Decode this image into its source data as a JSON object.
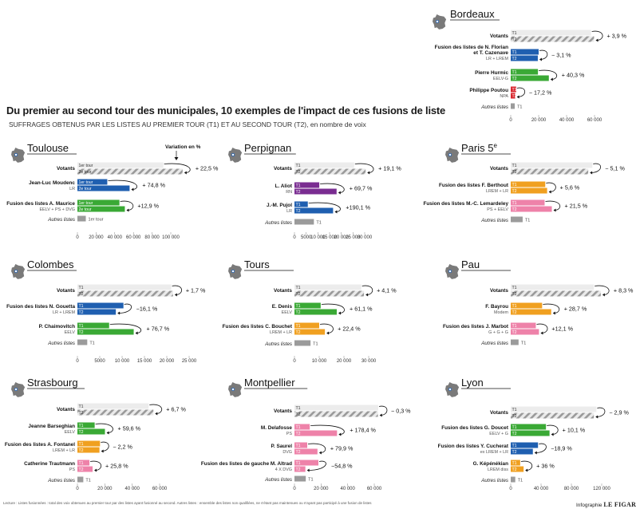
{
  "title": "Du premier au second tour des municipales, 10 exemples de l'impact de ces fusions de liste",
  "subtitle": "SUFFRAGES OBTENUS PAR LES LISTES AU PREMIER TOUR (T1) ET AU SECOND TOUR (T2), en nombre de voix",
  "note": "Lecture : Listes fusionnées : total des voix obtenues au premier tour par des listes ayant fusionné au second. Autres listes : ensemble des listes non qualifiées, ne s'étant pas maintenues ou n'ayant pas participé à une fusion de listes",
  "credit_prefix": "Infographie",
  "credit_name": "LE FIGARO",
  "variation_header": "Variation en %",
  "series_labels": {
    "t1": "T1",
    "t2": "T2",
    "t1_long": "1er tour",
    "t2_long": "2e tour"
  },
  "colors": {
    "voters": "#9a9a9a",
    "blue": "#1f5fb0",
    "green": "#3aa935",
    "red": "#d9272e",
    "purple": "#7a2d91",
    "orange": "#f0a020",
    "pink": "#ee82a9",
    "others": "#9b9b9b",
    "map": "#7a7a7a"
  },
  "chart_data": [
    {
      "type": "bar",
      "city": "Bordeaux",
      "xlim": [
        0,
        60000
      ],
      "ticks": [
        "0",
        "20 000",
        "40 000",
        "60 000"
      ],
      "rows": [
        {
          "name": "Votants",
          "kind": "voters",
          "t1": 57500,
          "t2": 59700,
          "change": "+ 3,9 %"
        },
        {
          "name": "Fusion des listes de N. Florian\net T. Cazenave",
          "sub": "LR + LREM",
          "color": "blue",
          "t1": 20000,
          "t2": 19400,
          "change": "− 3,1 %"
        },
        {
          "name": "Pierre Hurmic",
          "sub": "EELV-G",
          "color": "green",
          "t1": 19500,
          "t2": 27300,
          "change": "+ 40,3 %"
        },
        {
          "name": "Philippe Poutou",
          "sub": "NPA",
          "color": "red",
          "t1": 3900,
          "t2": 3200,
          "change": "− 17,2 %"
        },
        {
          "name": "Autres listes",
          "kind": "others",
          "t1": 2900
        }
      ]
    },
    {
      "type": "bar",
      "city": "Toulouse",
      "xlim": [
        0,
        100000
      ],
      "ticks": [
        "0",
        "20 000",
        "40 000",
        "60 000",
        "80 000",
        "100 000"
      ],
      "long_labels": true,
      "rows": [
        {
          "name": "Votants",
          "kind": "voters",
          "t1": 92000,
          "t2": 112700,
          "change": "+ 22,5 %"
        },
        {
          "name": "Jean-Luc Moudenc",
          "sub": "LR",
          "color": "blue",
          "t1": 32000,
          "t2": 55900,
          "change": "+ 74,8 %"
        },
        {
          "name": "Fusion des listes A. Maurice",
          "sub": "EELV + PS + DVG",
          "color": "green",
          "t1": 45000,
          "t2": 50800,
          "change": "+12,9 %"
        },
        {
          "name": "Autres listes",
          "kind": "others",
          "t1": 9000
        }
      ]
    },
    {
      "type": "bar",
      "city": "Perpignan",
      "xlim": [
        0,
        30000
      ],
      "ticks": [
        "0",
        "5000",
        "10 000",
        "15 000",
        "20 000",
        "25 000",
        "30 000"
      ],
      "rows": [
        {
          "name": "Votants",
          "kind": "voters",
          "t1": 25500,
          "t2": 30400,
          "change": "+ 19,1 %"
        },
        {
          "name": "L. Aliot",
          "sub": "RN",
          "color": "purple",
          "t1": 10600,
          "t2": 18000,
          "change": "+ 69,7 %"
        },
        {
          "name": "J.-M. Pujol",
          "sub": "LR",
          "color": "blue",
          "t1": 5700,
          "t2": 16500,
          "change": "+190,1 %"
        },
        {
          "name": "Autres listes",
          "kind": "others",
          "t1": 8300
        }
      ]
    },
    {
      "type": "bar",
      "city": "Paris 5",
      "city_sup": "e",
      "xlim": [
        0,
        30000
      ],
      "ticks": [],
      "rows": [
        {
          "name": "Votants",
          "kind": "voters",
          "t1": 26000,
          "t2": 24700,
          "change": "− 5,1 %"
        },
        {
          "name": "Fusion des listes F. Berthout",
          "sub": "LREM + LR",
          "color": "orange",
          "t1": 11000,
          "t2": 11600,
          "change": "+ 5,6 %"
        },
        {
          "name": "Fusion des listes M.-C. Lemardeley",
          "sub": "PS + EELV",
          "color": "pink",
          "t1": 10800,
          "t2": 13100,
          "change": "+ 21,5 %"
        },
        {
          "name": "Autres listes",
          "kind": "others",
          "t1": 3800
        }
      ]
    },
    {
      "type": "bar",
      "city": "Colombes",
      "xlim": [
        0,
        25000
      ],
      "ticks": [
        "0",
        "5000",
        "10 000",
        "15 000",
        "20 000",
        "25 000"
      ],
      "rows": [
        {
          "name": "Votants",
          "kind": "voters",
          "t1": 21000,
          "t2": 21400,
          "change": "+ 1,7 %"
        },
        {
          "name": "Fusion des listes N. Gouetta",
          "sub": "LR + LREM",
          "color": "blue",
          "t1": 10300,
          "t2": 8600,
          "change": "−16,1 %"
        },
        {
          "name": "P. Chaimovitch",
          "sub": "EELV",
          "color": "green",
          "t1": 7100,
          "t2": 12600,
          "change": "+ 76,7 %"
        },
        {
          "name": "Autres listes",
          "kind": "others",
          "t1": 2200
        }
      ]
    },
    {
      "type": "bar",
      "city": "Tours",
      "xlim": [
        0,
        30000
      ],
      "ticks": [
        "0",
        "10 000",
        "20 000",
        "30 000"
      ],
      "rows": [
        {
          "name": "Votants",
          "kind": "voters",
          "t1": 27000,
          "t2": 28100,
          "change": "+ 4,1 %"
        },
        {
          "name": "E. Denis",
          "sub": "EELV",
          "color": "green",
          "t1": 10600,
          "t2": 17100,
          "change": "+ 61,1 %"
        },
        {
          "name": "Fusion des listes C. Bouchet",
          "sub": "LREM + LR",
          "color": "orange",
          "t1": 10000,
          "t2": 12300,
          "change": "+ 22,4 %"
        },
        {
          "name": "Autres listes",
          "kind": "others",
          "t1": 6500
        }
      ]
    },
    {
      "type": "bar",
      "city": "Pau",
      "xlim": [
        0,
        30000
      ],
      "ticks": [],
      "rows": [
        {
          "name": "Votants",
          "kind": "voters",
          "t1": 26500,
          "t2": 28700,
          "change": "+ 8,3 %"
        },
        {
          "name": "F. Bayrou",
          "sub": "Modem",
          "color": "orange",
          "t1": 10000,
          "t2": 12900,
          "change": "+ 28,7 %"
        },
        {
          "name": "Fusion des listes J. Marbot",
          "sub": "G + G + G",
          "color": "pink",
          "t1": 8000,
          "t2": 9000,
          "change": "+12,1 %"
        },
        {
          "name": "Autres listes",
          "kind": "others",
          "t1": 2500
        }
      ]
    },
    {
      "type": "bar",
      "city": "Strasbourg",
      "xlim": [
        0,
        60000
      ],
      "ticks": [
        "0",
        "20 000",
        "40 000",
        "60 000"
      ],
      "rows": [
        {
          "name": "Votants",
          "kind": "voters",
          "t1": 52000,
          "t2": 55500,
          "change": "+ 6,7 %"
        },
        {
          "name": "Jeanne Barseghian",
          "sub": "EELV",
          "color": "green",
          "t1": 12600,
          "t2": 20100,
          "change": "+ 59,6 %"
        },
        {
          "name": "Fusion des listes A. Fontanel",
          "sub": "LREM + LR",
          "color": "orange",
          "t1": 16500,
          "t2": 16100,
          "change": "− 2,2 %"
        },
        {
          "name": "Catherine Trautmann",
          "sub": "PS",
          "color": "pink",
          "t1": 8800,
          "t2": 11100,
          "change": "+ 25,8 %"
        },
        {
          "name": "Autres listes",
          "kind": "others",
          "t1": 4300
        }
      ]
    },
    {
      "type": "bar",
      "city": "Montpellier",
      "xlim": [
        0,
        60000
      ],
      "ticks": [
        "0",
        "20 000",
        "40 000",
        "60 000"
      ],
      "rows": [
        {
          "name": "Votants",
          "kind": "voters",
          "t1": 63000,
          "t2": 62800,
          "change": "− 0,3 %"
        },
        {
          "name": "M. Delafosse",
          "sub": "PS",
          "color": "pink",
          "t1": 11500,
          "t2": 32000,
          "change": "+ 178,4 %"
        },
        {
          "name": "P. Saurel",
          "sub": "DVG",
          "color": "pink",
          "t1": 9600,
          "t2": 17300,
          "change": "+ 79,9 %"
        },
        {
          "name": "Fusion des listes de gauche M. Altrad",
          "sub": "4 X DVG",
          "color": "pink",
          "t1": 18000,
          "t2": 8200,
          "change": "−54,8 %"
        },
        {
          "name": "Autres listes",
          "kind": "others",
          "t1": 8500
        }
      ]
    },
    {
      "type": "bar",
      "city": "Lyon",
      "xlim": [
        0,
        120000
      ],
      "ticks": [
        "0",
        "40 000",
        "80 000",
        "120 000"
      ],
      "rows": [
        {
          "name": "Votants",
          "kind": "voters",
          "t1": 113000,
          "t2": 109700,
          "change": "− 2,9 %"
        },
        {
          "name": "Fusion des listes G. Doucet",
          "sub": "EELV + G",
          "color": "green",
          "t1": 46500,
          "t2": 51200,
          "change": "+ 10,1 %"
        },
        {
          "name": "Fusion des listes Y. Cucherat",
          "sub": "ex LREM + LR",
          "color": "blue",
          "t1": 36000,
          "t2": 29200,
          "change": "−18,9 %"
        },
        {
          "name": "G. Képénékian",
          "sub": "LREM diss",
          "color": "orange",
          "t1": 12500,
          "t2": 17000,
          "change": "+ 36 %"
        },
        {
          "name": "Autres listes",
          "kind": "others",
          "t1": 6000
        }
      ]
    }
  ]
}
